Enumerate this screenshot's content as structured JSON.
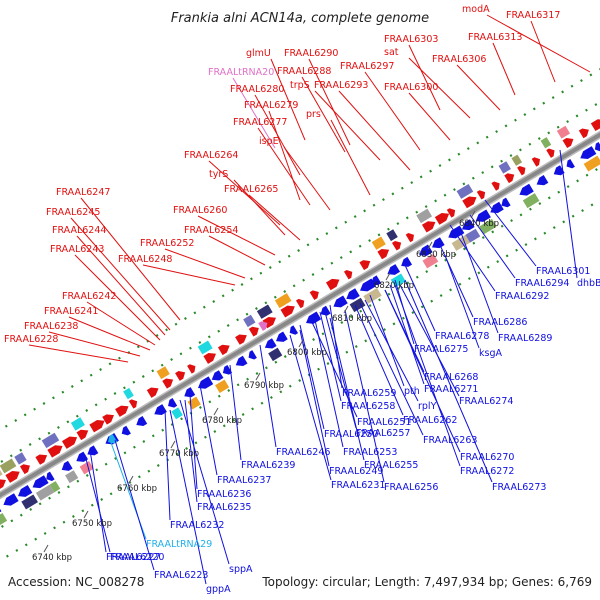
{
  "title": "Frankia alni ACN14a, complete genome",
  "footer": {
    "accession": "Accession: NC_008278",
    "summary": "Topology: circular; Length: 7,497,934 bp; Genes: 6,769"
  },
  "colors": {
    "forward": "#e01010",
    "reverse": "#1010e0",
    "trna_forward": "#e070c8",
    "trna_reverse": "#20b0e8",
    "backbone": "#888888",
    "dots": "#2a8a2a",
    "cog_olive": "#9aa060",
    "cog_purple": "#7070c0",
    "cog_cyan": "#20d8e0",
    "cog_tan": "#c8b890",
    "cog_green": "#80b060",
    "cog_orange": "#f0a020",
    "cog_pink": "#f08090",
    "cog_gray": "#a0a0a0",
    "cog_navy": "#303070"
  },
  "ticks": [
    "6740 kbp",
    "6750 kbp",
    "6760 kbp",
    "6770 kbp",
    "6780 kbp",
    "6790 kbp",
    "6800 kbp",
    "6810 kbp",
    "6820 kbp",
    "6830 kbp",
    "6840 kbp"
  ],
  "forward_labels": [
    "modA",
    "FRAAL6317",
    "FRAAL6303",
    "FRAAL6313",
    "sat",
    "FRAAL6306",
    "glmU",
    "FRAAL6290",
    "FRAAL6297",
    "FRAALtRNA20",
    "FRAAL6288",
    "trpS",
    "FRAAL6280",
    "FRAAL6293",
    "FRAAL6300",
    "FRAAL6279",
    "prs",
    "FRAAL6277",
    "ispE",
    "FRAAL6264",
    "tyrS",
    "FRAAL6265",
    "FRAAL6247",
    "FRAAL6260",
    "FRAAL6245",
    "FRAAL6254",
    "FRAAL6244",
    "FRAAL6252",
    "FRAAL6243",
    "FRAAL6248",
    "FRAAL6242",
    "FRAAL6241",
    "FRAAL6238",
    "FRAAL6228"
  ],
  "reverse_labels": [
    "FRAAL6301",
    "FRAAL6294",
    "dhbB",
    "FRAAL6292",
    "FRAAL6286",
    "FRAAL6278",
    "FRAAL6289",
    "FRAAL6275",
    "ksgA",
    "FRAAL6268",
    "FRAAL6271",
    "FRAAL6259",
    "pth",
    "FRAAL6274",
    "FRAAL6258",
    "rplY",
    "FRAAL6262",
    "FRAAL6251",
    "FRAAL6257",
    "FRAAL6263",
    "FRAAL6250",
    "FRAAL6246",
    "FRAAL6253",
    "FRAAL6239",
    "FRAAL6249",
    "FRAAL6255",
    "FRAAL6270",
    "FRAAL6272",
    "FRAAL6237",
    "FRAAL6231",
    "FRAAL6256",
    "FRAAL6273",
    "FRAAL6236",
    "FRAAL6235",
    "FRAAL6232",
    "FRAALtRNA29",
    "FRAAL6227",
    "FRAAL6220",
    "sppA",
    "FRAAL6223",
    "gppA"
  ]
}
